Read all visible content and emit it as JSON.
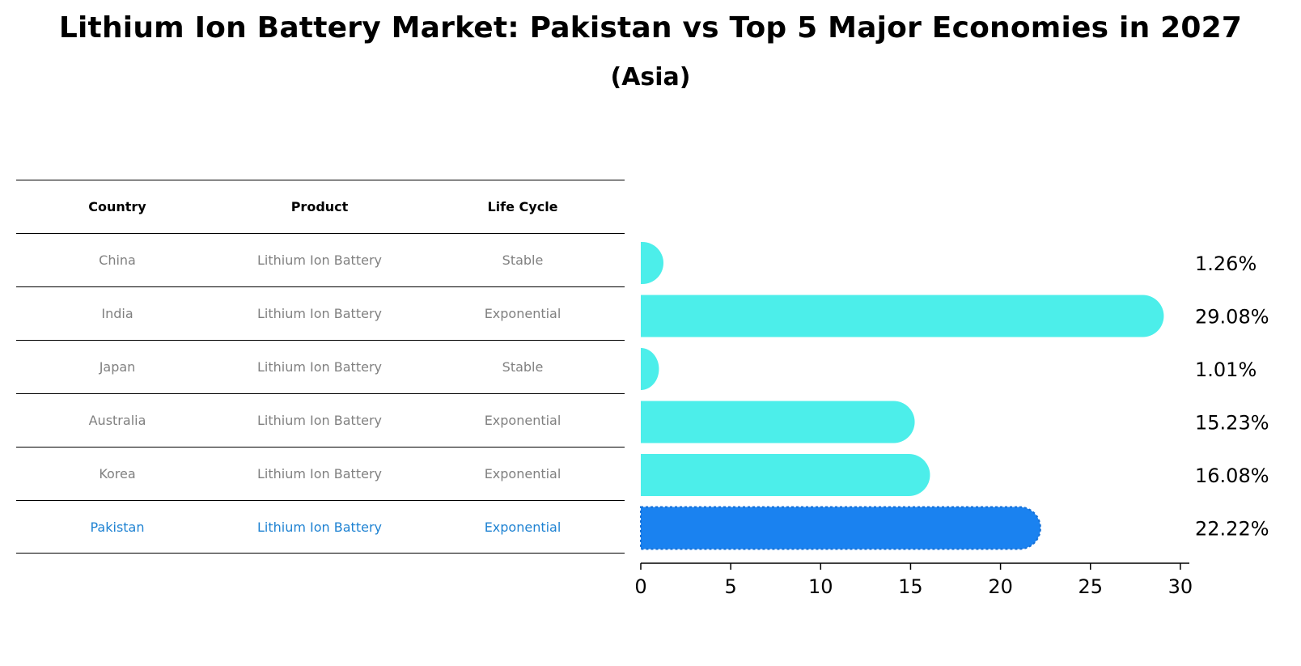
{
  "title": "Lithium Ion Battery Market: Pakistan vs Top 5 Major Economies in 2027",
  "subtitle": "(Asia)",
  "table": {
    "headers": [
      "Country",
      "Product",
      "Life Cycle"
    ],
    "rows": [
      [
        "China",
        "Lithium Ion Battery",
        "Stable"
      ],
      [
        "India",
        "Lithium Ion Battery",
        "Exponential"
      ],
      [
        "Japan",
        "Lithium Ion Battery",
        "Stable"
      ],
      [
        "Australia",
        "Lithium Ion Battery",
        "Exponential"
      ],
      [
        "Korea",
        "Lithium Ion Battery",
        "Exponential"
      ],
      [
        "Pakistan",
        "Lithium Ion Battery",
        "Exponential"
      ]
    ],
    "highlight_row": 5
  },
  "colors": {
    "bar": "#4ceeea",
    "highlight_bar": "#1a82f0",
    "highlight_text": "#1e82d2",
    "row_text": "#808080"
  },
  "chart_data": {
    "type": "bar",
    "orientation": "horizontal",
    "categories": [
      "China",
      "India",
      "Japan",
      "Australia",
      "Korea",
      "Pakistan"
    ],
    "values": [
      1.26,
      29.08,
      1.01,
      15.23,
      16.08,
      22.22
    ],
    "value_labels": [
      "1.26%",
      "29.08%",
      "1.01%",
      "15.23%",
      "16.08%",
      "22.22%"
    ],
    "xlim": [
      0,
      30.5
    ],
    "xticks": [
      0,
      5,
      10,
      15,
      20,
      25,
      30
    ],
    "highlight_index": 5,
    "grid": false
  }
}
